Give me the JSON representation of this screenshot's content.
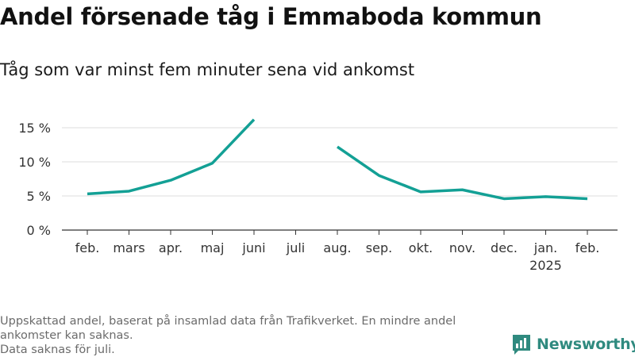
{
  "title": "Andel försenade tåg i Emmaboda kommun",
  "subtitle": "Tåg som var minst fem minuter sena vid ankomst",
  "footnote": {
    "line1": "Uppskattad andel, baserat på insamlad data från Trafikverket. En mindre andel ankomster kan saknas.",
    "line2": "Data saknas för juli."
  },
  "logo": {
    "text": "Newsworthy",
    "icon": "bar-chart-icon"
  },
  "colors": {
    "line": "#13a095",
    "grid": "#dddddd",
    "axis": "#333333",
    "logo": "#2f8a7f"
  },
  "chart_data": {
    "type": "line",
    "categories": [
      "feb.",
      "mars",
      "apr.",
      "maj",
      "juni",
      "juli",
      "aug.",
      "sep.",
      "okt.",
      "nov.",
      "dec.",
      "jan.",
      "feb."
    ],
    "category_sublabels": [
      "",
      "",
      "",
      "",
      "",
      "",
      "",
      "",
      "",
      "",
      "",
      "2025",
      ""
    ],
    "series": [
      {
        "values": [
          5.3,
          5.7,
          7.3,
          9.8,
          16.2,
          null,
          12.2,
          8.0,
          5.6,
          5.9,
          4.6,
          4.9,
          4.6
        ]
      }
    ],
    "yticks": [
      0,
      5,
      10,
      15
    ],
    "ytick_labels": [
      "0 %",
      "5 %",
      "10 %",
      "15 %"
    ],
    "ylim": [
      0,
      17
    ],
    "xlabel": "",
    "ylabel": "",
    "grid": true
  }
}
